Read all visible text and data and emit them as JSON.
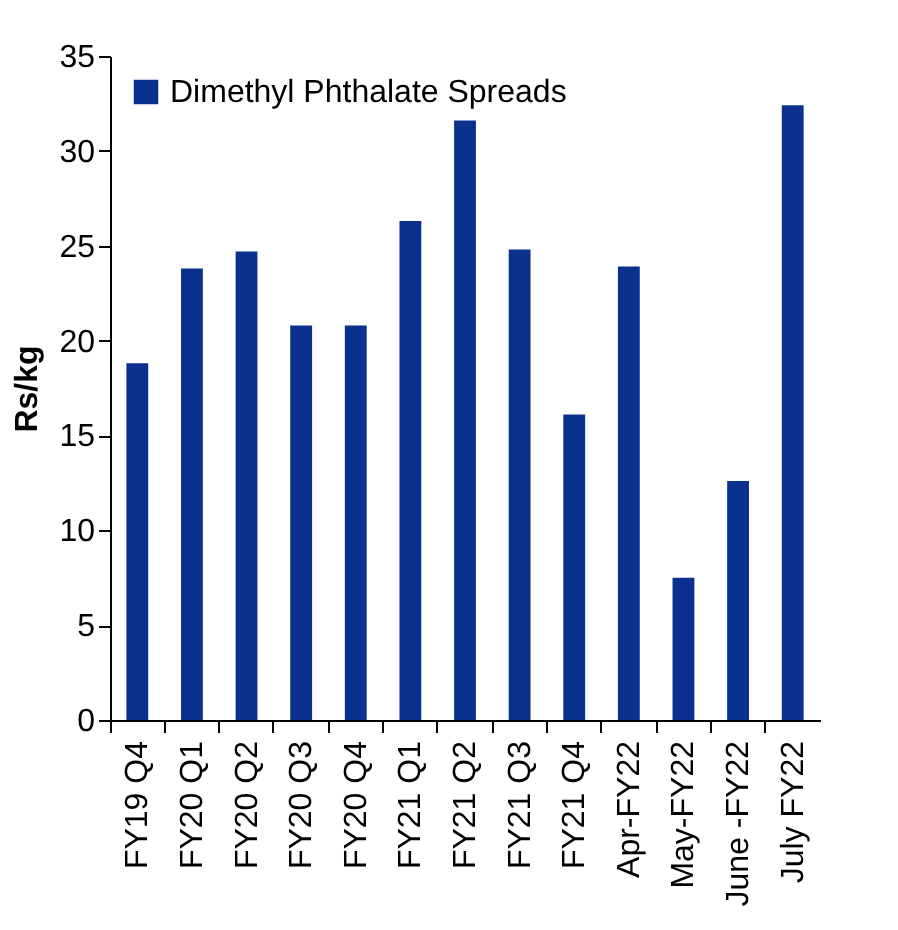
{
  "chart_data": {
    "type": "bar",
    "ylabel": "Rs/kg",
    "categories": [
      "FY19 Q4",
      "FY20 Q1",
      "FY20 Q2",
      "FY20 Q3",
      "FY20 Q4",
      "FY21 Q1",
      "FY21 Q2",
      "FY21 Q3",
      "FY21 Q4",
      "Apr-FY22",
      "May-FY22",
      "June -FY22",
      "July  FY22"
    ],
    "series": [
      {
        "name": "Dimethyl Phthalate Spreads",
        "color": "#0b318f",
        "values": [
          18.8,
          23.8,
          24.7,
          20.8,
          20.8,
          26.3,
          31.6,
          24.8,
          16.1,
          23.9,
          7.5,
          12.6,
          32.4
        ]
      }
    ],
    "ylim": [
      0,
      35
    ],
    "yticks": [
      0,
      5,
      10,
      15,
      20,
      25,
      30,
      35
    ],
    "grid": false,
    "legend": "top left"
  }
}
